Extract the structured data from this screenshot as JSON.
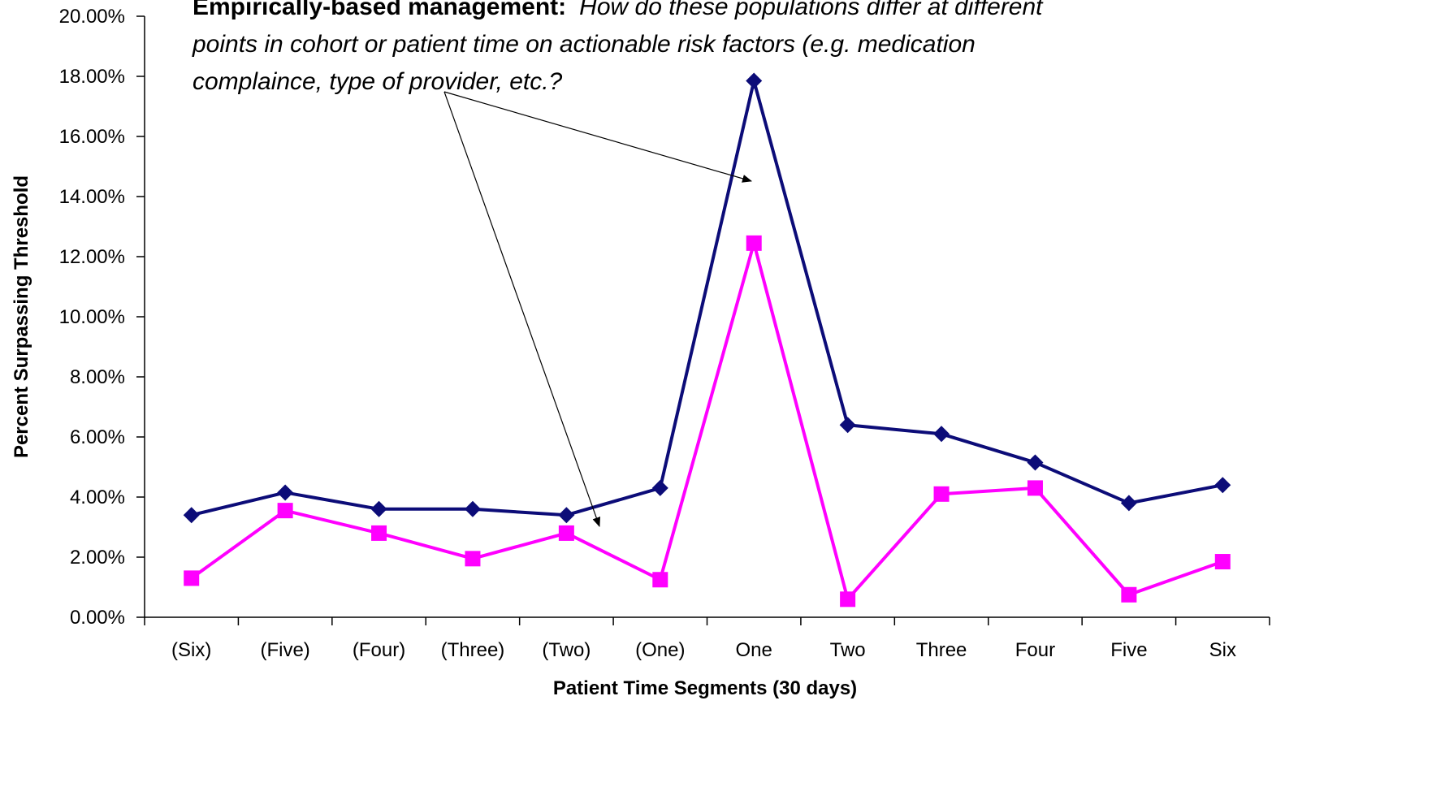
{
  "chart_data": {
    "type": "line",
    "categories": [
      "(Six)",
      "(Five)",
      "(Four)",
      "(Three)",
      "(Two)",
      "(One)",
      "One",
      "Two",
      "Three",
      "Four",
      "Five",
      "Six"
    ],
    "series": [
      {
        "color": "#0c0c78",
        "marker": "diamond",
        "values": [
          3.4,
          4.15,
          3.6,
          3.6,
          3.4,
          4.3,
          17.85,
          6.4,
          6.1,
          5.15,
          3.8,
          4.4
        ]
      },
      {
        "color": "#ff00ff",
        "marker": "square",
        "values": [
          1.3,
          3.55,
          2.8,
          1.95,
          2.8,
          1.25,
          12.45,
          0.6,
          4.1,
          4.3,
          0.75,
          1.85
        ]
      }
    ],
    "y_ticks": [
      "0.00%",
      "2.00%",
      "4.00%",
      "6.00%",
      "8.00%",
      "10.00%",
      "12.00%",
      "14.00%",
      "16.00%",
      "18.00%",
      "20.00%"
    ],
    "ylim": [
      0,
      20
    ],
    "xlabel": "Patient Time Segments (30 days)",
    "ylabel": "Percent Surpassing Threshold",
    "grid": false,
    "annotation": {
      "bold": "Empirically-based management:",
      "italic_line1": "How do these populations differ at different",
      "italic_line2": "points in cohort or patient time on actionable risk factors (e.g. medication",
      "italic_line3": "complaince, type of provider, etc.?"
    }
  }
}
